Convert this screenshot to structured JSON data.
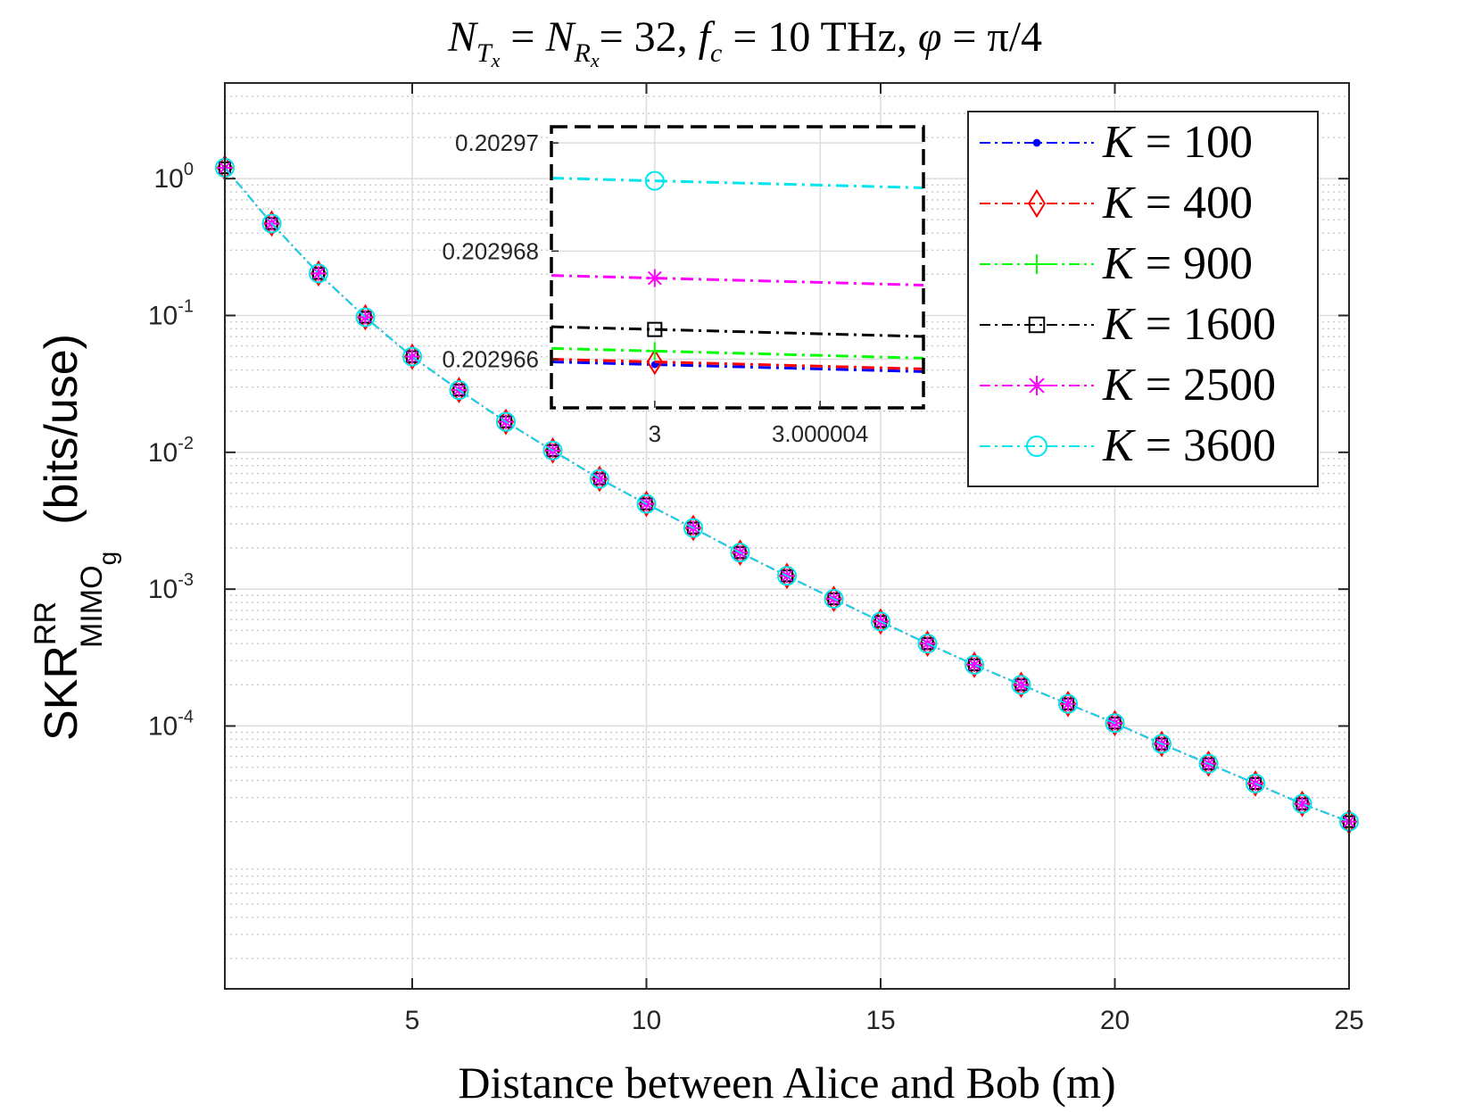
{
  "chart_data": {
    "type": "line",
    "title": "N_{T_x} = N_{R_x} = 32, f_c = 10 THz, φ = π/4",
    "title_parts": {
      "n": "N",
      "t_sub": "T",
      "x_sub": "x",
      "eq1": " = ",
      "r_sub": "R",
      "eq2": "= 32,  ",
      "f": "f",
      "c_sub": "c",
      "eq3": " = 10 THz,  ",
      "phi": "φ",
      "eq4": " = π/4"
    },
    "xlabel": "Distance between Alice and Bob (m)",
    "ylabel": {
      "main": "SKR",
      "superscript": "RR",
      "subscript": "MIMO",
      "subsubscript": "g",
      "units": "(bits/use)"
    },
    "xscale": "linear",
    "yscale": "log",
    "xlim": [
      1,
      25
    ],
    "ylim": [
      1.2e-06,
      5
    ],
    "x_ticks": [
      5,
      10,
      15,
      20,
      25
    ],
    "x_tick_labels": [
      "5",
      "10",
      "15",
      "20",
      "25"
    ],
    "y_ticks": [
      0.0001,
      0.001,
      0.01,
      0.1,
      1
    ],
    "y_tick_labels": [
      {
        "base": "10",
        "exp": "-4"
      },
      {
        "base": "10",
        "exp": "-3"
      },
      {
        "base": "10",
        "exp": "-2"
      },
      {
        "base": "10",
        "exp": "-1"
      },
      {
        "base": "10",
        "exp": "0"
      }
    ],
    "grid": true,
    "legend_position": "top-right",
    "x": [
      1,
      2,
      3,
      4,
      5,
      6,
      7,
      8,
      9,
      10,
      11,
      12,
      13,
      14,
      15,
      16,
      17,
      18,
      19,
      20,
      21,
      22,
      23,
      24,
      25
    ],
    "series": [
      {
        "name": "K = 100",
        "k": "K",
        "eq": " = 100",
        "color": "#0000ff",
        "marker": "dot",
        "inset_value": 0.2029659,
        "values": [
          1.2,
          0.47,
          0.203,
          0.097,
          0.05,
          0.0285,
          0.0167,
          0.0103,
          0.0064,
          0.0042,
          0.0028,
          0.00185,
          0.00125,
          0.00085,
          0.00058,
          0.0004,
          0.00028,
          0.0002,
          0.000145,
          0.000105,
          7.4e-05,
          5.3e-05,
          3.8e-05,
          2.7e-05,
          2e-05
        ]
      },
      {
        "name": "K = 400",
        "k": "K",
        "eq": " = 400",
        "color": "#ff0000",
        "marker": "diamond",
        "inset_value": 0.20296595,
        "values": [
          1.2,
          0.47,
          0.203,
          0.097,
          0.05,
          0.0285,
          0.0167,
          0.0103,
          0.0064,
          0.0042,
          0.0028,
          0.00185,
          0.00125,
          0.00085,
          0.00058,
          0.0004,
          0.00028,
          0.0002,
          0.000145,
          0.000105,
          7.4e-05,
          5.3e-05,
          3.8e-05,
          2.7e-05,
          2e-05
        ]
      },
      {
        "name": "K = 900",
        "k": "K",
        "eq": " = 900",
        "color": "#00ff00",
        "marker": "plus",
        "inset_value": 0.20296615,
        "values": [
          1.2,
          0.47,
          0.203,
          0.097,
          0.05,
          0.0285,
          0.0167,
          0.0103,
          0.0064,
          0.0042,
          0.0028,
          0.00185,
          0.00125,
          0.00085,
          0.00058,
          0.0004,
          0.00028,
          0.0002,
          0.000145,
          0.000105,
          7.4e-05,
          5.3e-05,
          3.8e-05,
          2.7e-05,
          2e-05
        ]
      },
      {
        "name": "K = 1600",
        "k": "K",
        "eq": " = 1600",
        "color": "#000000",
        "marker": "square",
        "inset_value": 0.20296655,
        "values": [
          1.2,
          0.47,
          0.203,
          0.097,
          0.05,
          0.0285,
          0.0167,
          0.0103,
          0.0064,
          0.0042,
          0.0028,
          0.00185,
          0.00125,
          0.00085,
          0.00058,
          0.0004,
          0.00028,
          0.0002,
          0.000145,
          0.000105,
          7.4e-05,
          5.3e-05,
          3.8e-05,
          2.7e-05,
          2e-05
        ]
      },
      {
        "name": "K = 2500",
        "k": "K",
        "eq": " = 2500",
        "color": "#ff00ff",
        "marker": "star",
        "inset_value": 0.2029675,
        "values": [
          1.2,
          0.47,
          0.203,
          0.097,
          0.05,
          0.0285,
          0.0167,
          0.0103,
          0.0064,
          0.0042,
          0.0028,
          0.00185,
          0.00125,
          0.00085,
          0.00058,
          0.0004,
          0.00028,
          0.0002,
          0.000145,
          0.000105,
          7.4e-05,
          5.3e-05,
          3.8e-05,
          2.7e-05,
          2e-05
        ]
      },
      {
        "name": "K = 3600",
        "k": "K",
        "eq": " = 3600",
        "color": "#00e5ee",
        "marker": "circle",
        "inset_value": 0.2029693,
        "values": [
          1.2,
          0.47,
          0.203,
          0.097,
          0.05,
          0.0285,
          0.0167,
          0.0103,
          0.0064,
          0.0042,
          0.0028,
          0.00185,
          0.00125,
          0.00085,
          0.00058,
          0.0004,
          0.00028,
          0.0002,
          0.000145,
          0.000105,
          7.4e-05,
          5.3e-05,
          3.8e-05,
          2.7e-05,
          2e-05
        ]
      }
    ],
    "inset": {
      "xlim": [
        2.9999975,
        3.0000065
      ],
      "ylim": [
        0.2029651,
        0.2029703
      ],
      "marker_x": 3,
      "line_slope_per_unit": -2e-08,
      "x_ticks": [
        3,
        3.000004
      ],
      "x_tick_labels": [
        "3",
        "3.000004"
      ],
      "y_ticks": [
        0.202966,
        0.202968,
        0.20297
      ],
      "y_tick_labels": [
        "0.202966",
        "0.202968",
        "0.20297"
      ]
    }
  }
}
